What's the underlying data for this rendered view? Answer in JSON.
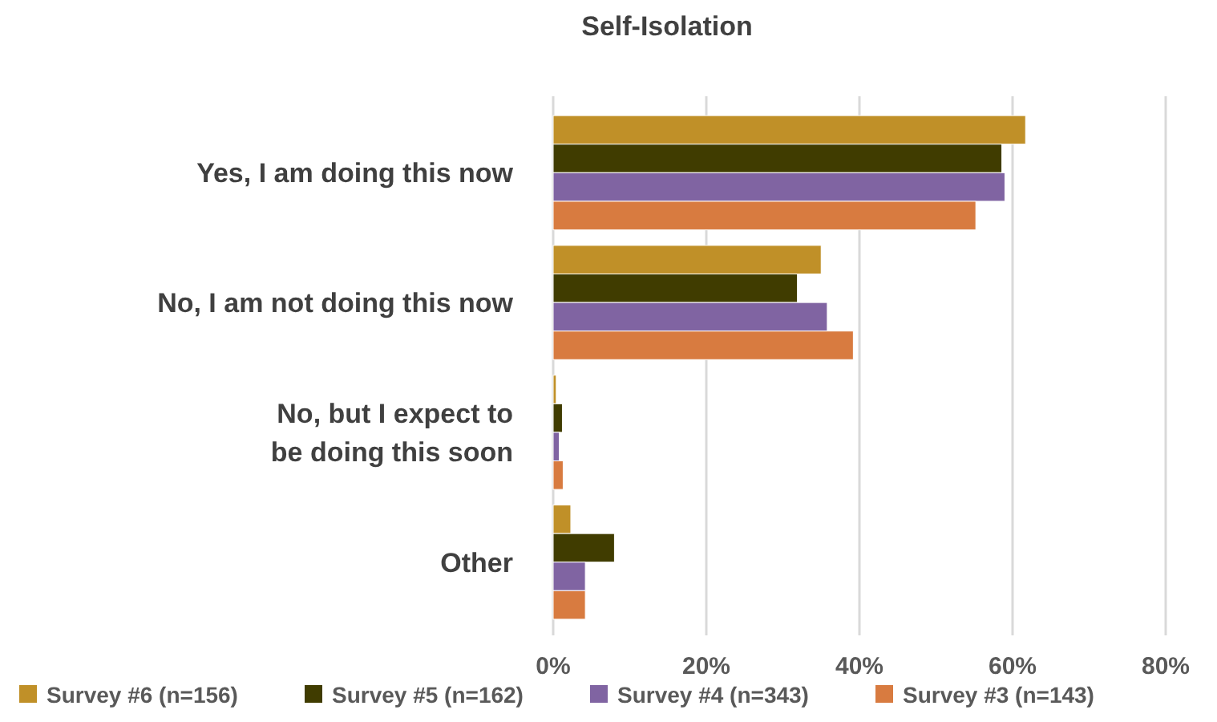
{
  "chart_data": {
    "type": "bar",
    "orientation": "horizontal",
    "title": "Self-Isolation",
    "categories": [
      "Yes, I am doing this now",
      "No, I am not doing this now",
      "No, but I expect to be doing this soon",
      "Other"
    ],
    "series": [
      {
        "name": "Survey #6 (n=156)",
        "color": "#c09028",
        "values": [
          61.7,
          35.0,
          0.4,
          2.3
        ]
      },
      {
        "name": "Survey #5 (n=162)",
        "color": "#403c00",
        "values": [
          58.6,
          31.9,
          1.2,
          8.0
        ]
      },
      {
        "name": "Survey #4 (n=343)",
        "color": "#8064a2",
        "values": [
          59.0,
          35.8,
          0.8,
          4.2
        ]
      },
      {
        "name": "Survey #3 (n=143)",
        "color": "#d87b40",
        "values": [
          55.2,
          39.2,
          1.3,
          4.2
        ]
      }
    ],
    "xlim": [
      0,
      80
    ],
    "xticks": [
      {
        "value": 0,
        "label": "0%"
      },
      {
        "value": 20,
        "label": "20%"
      },
      {
        "value": 40,
        "label": "40%"
      },
      {
        "value": 60,
        "label": "60%"
      },
      {
        "value": 80,
        "label": "80%"
      }
    ],
    "grid": "x",
    "legend": "bottom"
  }
}
